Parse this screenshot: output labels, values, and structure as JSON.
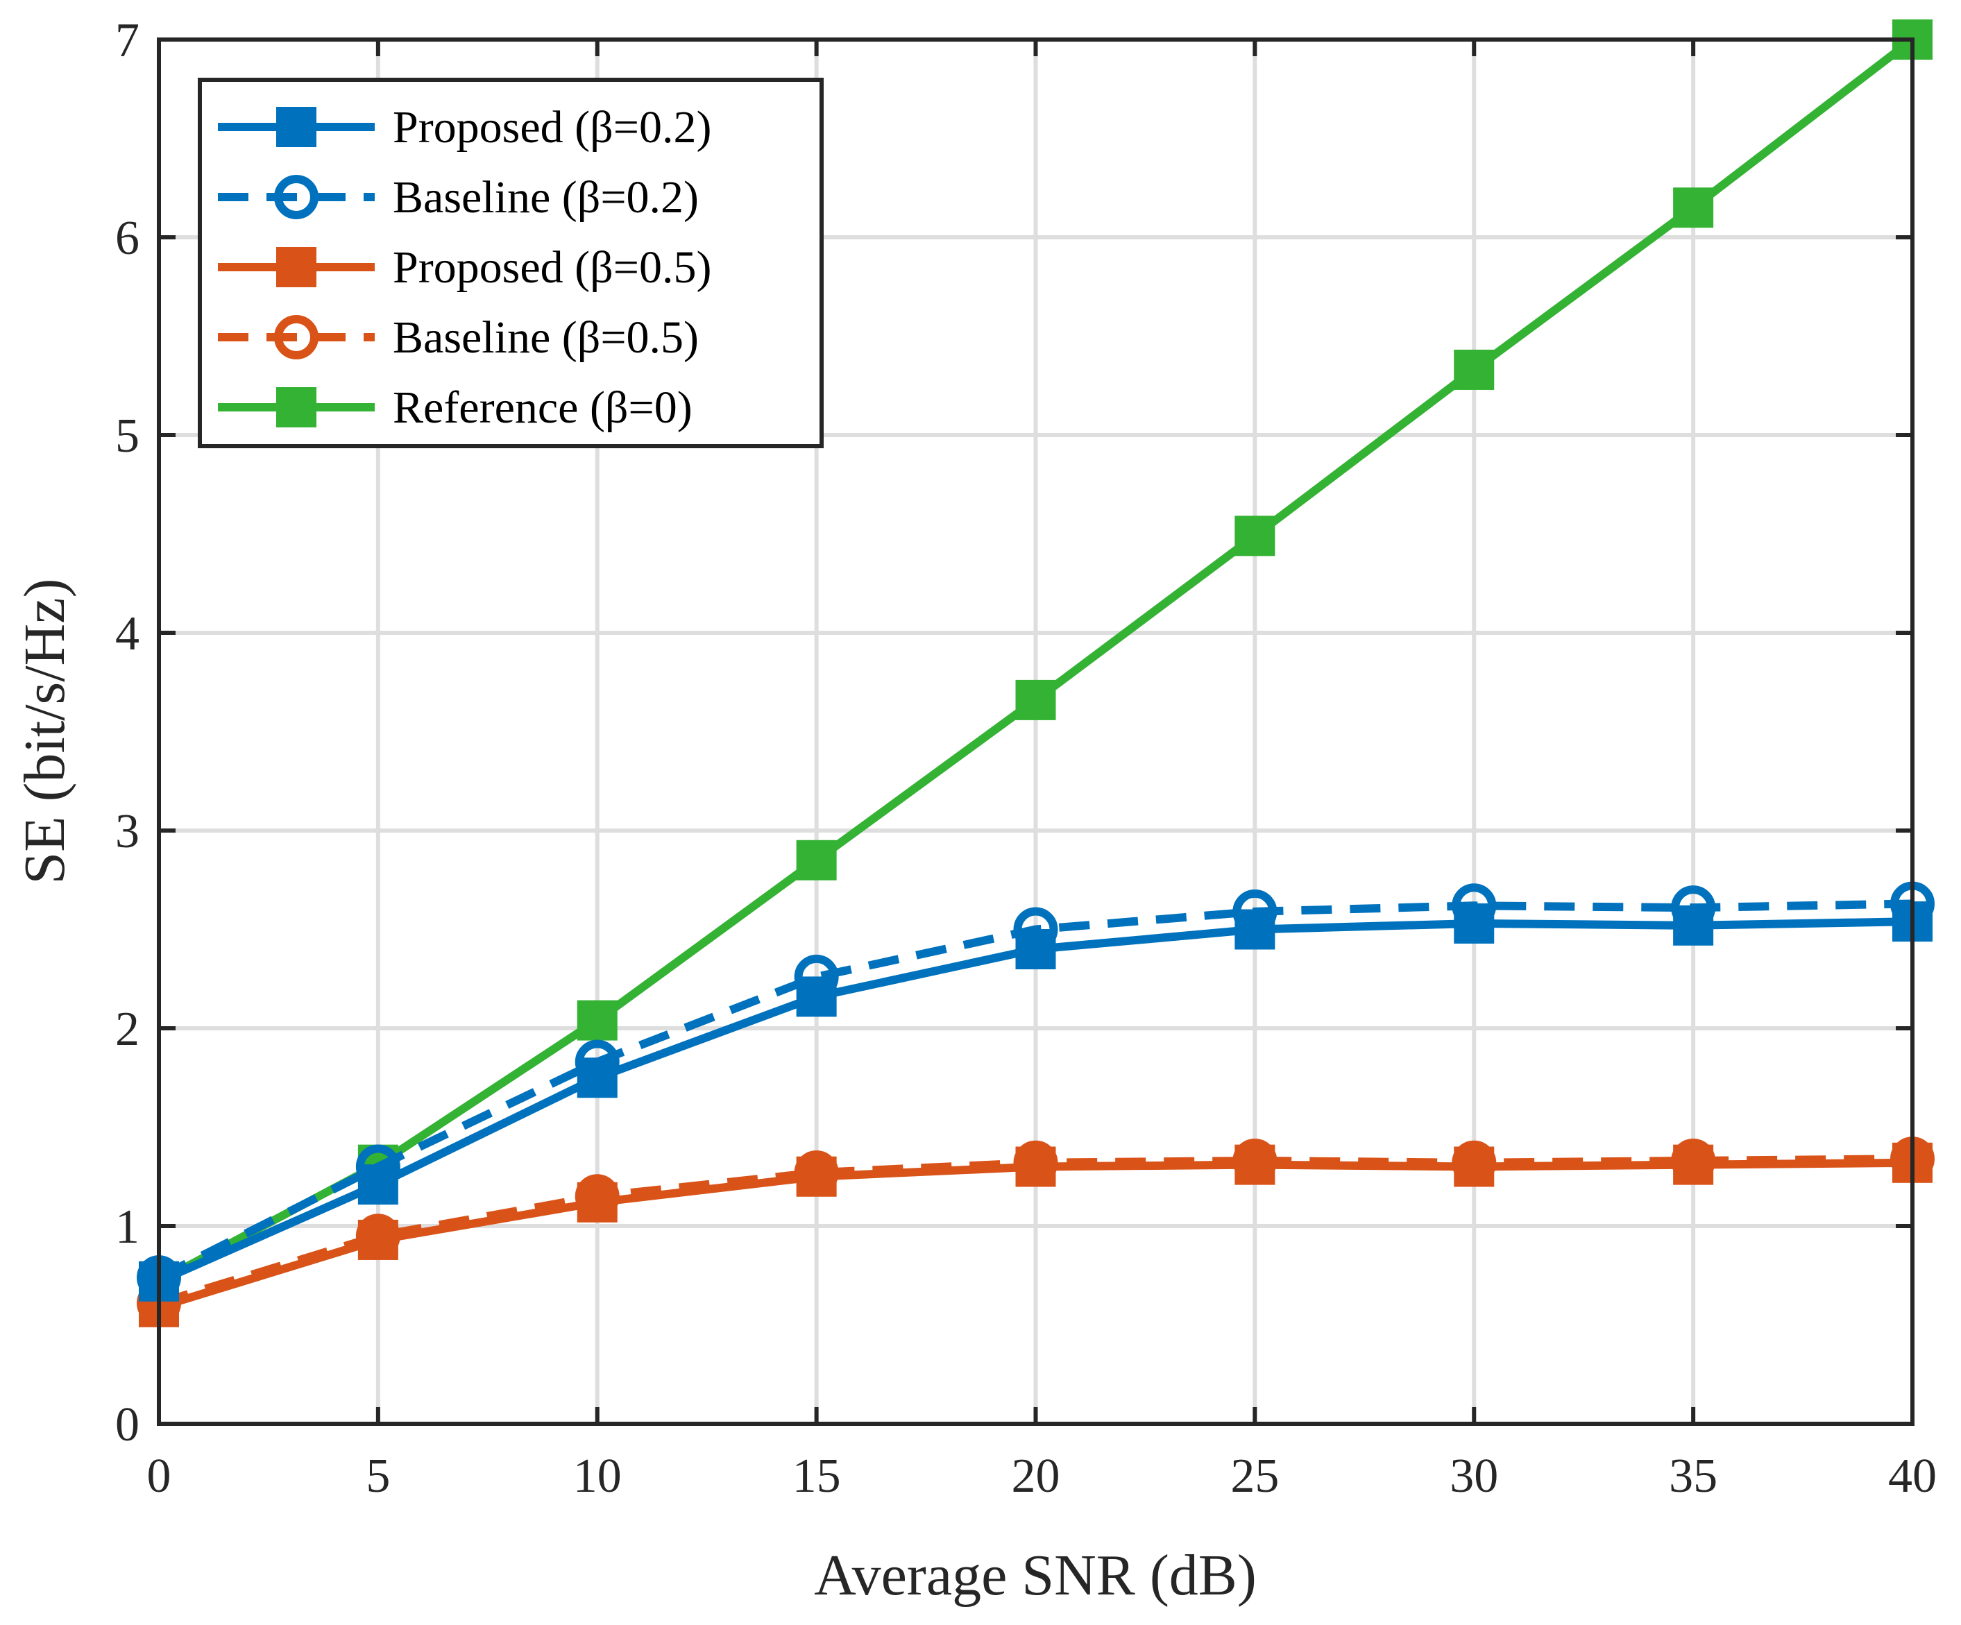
{
  "chart_data": {
    "type": "line",
    "title": "",
    "xlabel": "Average SNR (dB)",
    "ylabel": "SE (bit/s/Hz)",
    "xlim": [
      0,
      40
    ],
    "ylim": [
      0,
      7
    ],
    "xticks": [
      "0",
      "5",
      "10",
      "15",
      "20",
      "25",
      "30",
      "35",
      "40"
    ],
    "yticks": [
      "0",
      "1",
      "2",
      "3",
      "4",
      "5",
      "6",
      "7"
    ],
    "grid": true,
    "legend_position": "top-left",
    "x": [
      0,
      5,
      10,
      15,
      20,
      25,
      30,
      35,
      40
    ],
    "series": [
      {
        "name": "Proposed (β=0.2)",
        "color": "#0072BD",
        "style": "solid",
        "marker": "square",
        "values": [
          0.72,
          1.21,
          1.75,
          2.16,
          2.4,
          2.5,
          2.53,
          2.52,
          2.54
        ]
      },
      {
        "name": "Baseline (β=0.2)",
        "color": "#0072BD",
        "style": "dashed",
        "marker": "circle",
        "values": [
          0.74,
          1.3,
          1.83,
          2.26,
          2.5,
          2.59,
          2.62,
          2.61,
          2.63
        ]
      },
      {
        "name": "Proposed (β=0.5)",
        "color": "#D95319",
        "style": "solid",
        "marker": "square",
        "values": [
          0.59,
          0.93,
          1.12,
          1.25,
          1.3,
          1.31,
          1.3,
          1.31,
          1.32
        ]
      },
      {
        "name": "Baseline (β=0.5)",
        "color": "#D95319",
        "style": "dashed",
        "marker": "circle",
        "values": [
          0.61,
          0.95,
          1.15,
          1.27,
          1.32,
          1.33,
          1.32,
          1.33,
          1.34
        ]
      },
      {
        "name": "Reference (β=0)",
        "color": "#33B233",
        "style": "solid",
        "marker": "square",
        "values": [
          0.72,
          1.31,
          2.04,
          2.85,
          3.66,
          4.49,
          5.33,
          6.15,
          7.0
        ]
      }
    ]
  }
}
